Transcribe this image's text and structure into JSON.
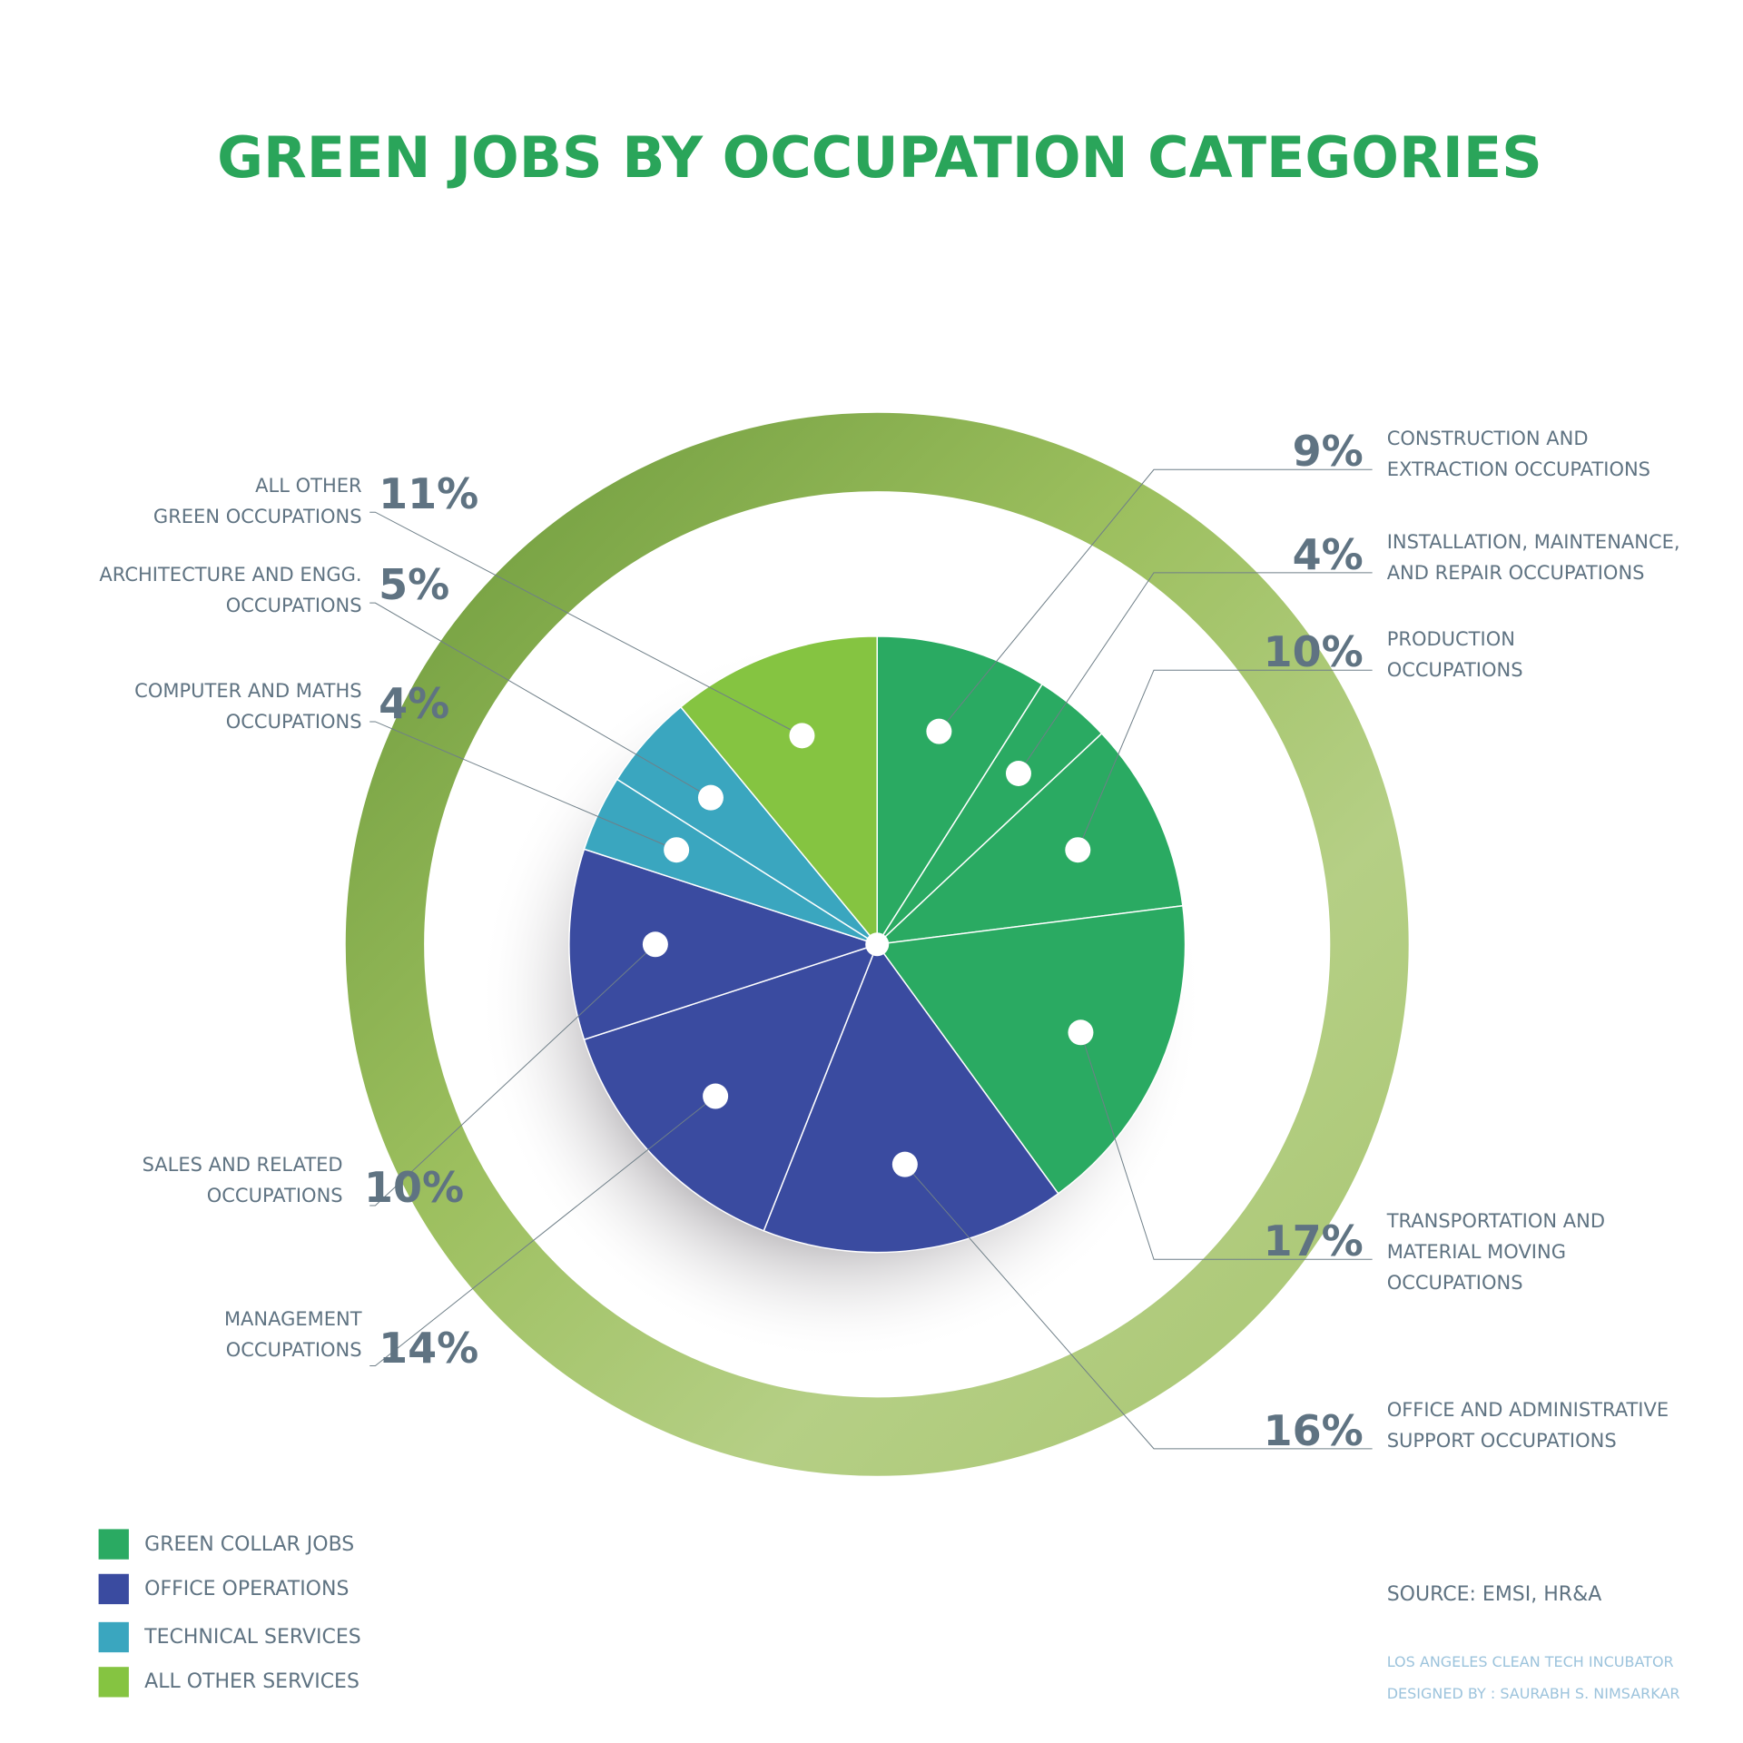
{
  "chart_data": {
    "type": "pie",
    "title": "GREEN JOBS BY OCCUPATION CATEGORIES",
    "categories": [
      "CONSTRUCTION AND\nEXTRACTION OCCUPATIONS",
      "INSTALLATION, MAINTENANCE,\nAND REPAIR OCCUPATIONS",
      "PRODUCTION\nOCCUPATIONS",
      "TRANSPORTATION AND\nMATERIAL MOVING\nOCCUPATIONS",
      "OFFICE AND ADMINISTRATIVE\nSUPPORT OCCUPATIONS",
      "MANAGEMENT\nOCCUPATIONS",
      "SALES AND RELATED\nOCCUPATIONS",
      "COMPUTER AND MATHS\nOCCUPATIONS",
      "ARCHITECTURE AND ENGG.\nOCCUPATIONS",
      "ALL OTHER\nGREEN OCCUPATIONS"
    ],
    "values": [
      9,
      4,
      10,
      17,
      16,
      14,
      10,
      4,
      5,
      11
    ],
    "value_labels": [
      "9%",
      "4%",
      "10%",
      "17%",
      "16%",
      "14%",
      "10%",
      "4%",
      "5%",
      "11%"
    ],
    "colors": [
      "#2aaa62",
      "#2aaa62",
      "#2aaa62",
      "#2aaa62",
      "#3a4ba0",
      "#3a4ba0",
      "#3a4ba0",
      "#3aa6bf",
      "#3aa6bf",
      "#85c441"
    ],
    "legend": [
      {
        "name": "GREEN COLLAR JOBS",
        "color": "#2aaa62"
      },
      {
        "name": "OFFICE OPERATIONS",
        "color": "#3a4ba0"
      },
      {
        "name": "TECHNICAL SERVICES",
        "color": "#3aa6bf"
      },
      {
        "name": "ALL OTHER SERVICES",
        "color": "#85c441"
      }
    ],
    "source": "SOURCE: EMSI, HR&A",
    "credits": [
      "LOS ANGELES CLEAN TECH INCUBATOR",
      "DESIGNED BY : SAURABH S. NIMSARKAR"
    ]
  }
}
